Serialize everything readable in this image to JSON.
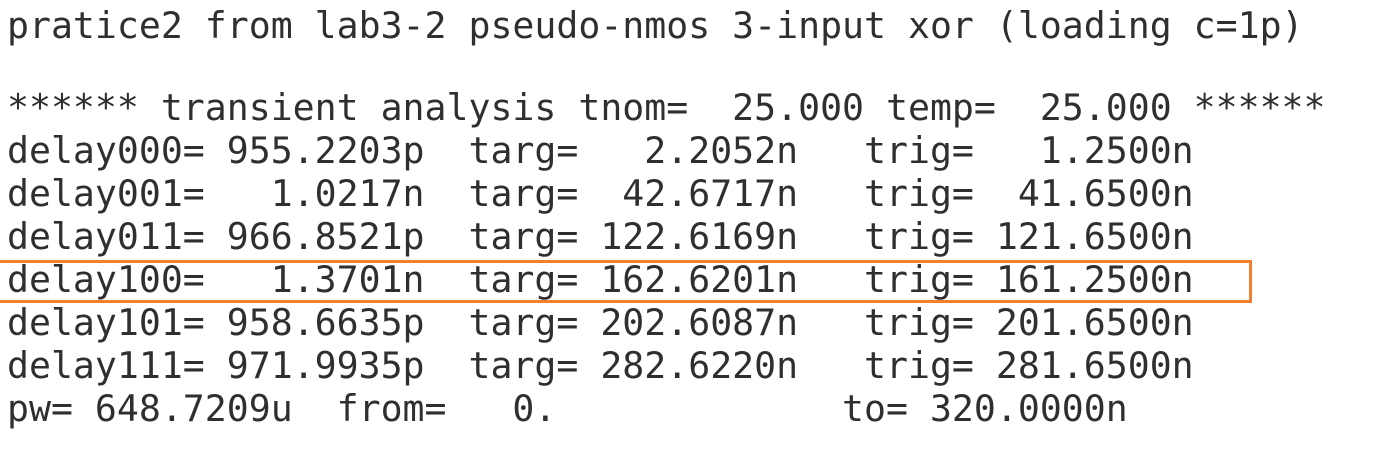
{
  "output": {
    "lines": [
      "pratice2 from lab3-2 pseudo-nmos 3-input xor (loading c=1p)",
      "****** transient analysis tnom=  25.000 temp=  25.000 ******",
      "delay000= 955.2203p  targ=   2.2052n   trig=   1.2500n",
      "delay001=   1.0217n  targ=  42.6717n   trig=  41.6500n",
      "delay011= 966.8521p  targ= 122.6169n   trig= 121.6500n",
      "delay100=   1.3701n  targ= 162.6201n   trig= 161.2500n",
      "delay101= 958.6635p  targ= 202.6087n   trig= 201.6500n",
      "delay111= 971.9935p  targ= 282.6220n   trig= 281.6500n",
      "pw= 648.7209u  from=   0.             to= 320.0000n"
    ]
  },
  "colors": {
    "text": "#2f2f2f",
    "highlight": "#f07f2f",
    "background": "#ffffff"
  }
}
